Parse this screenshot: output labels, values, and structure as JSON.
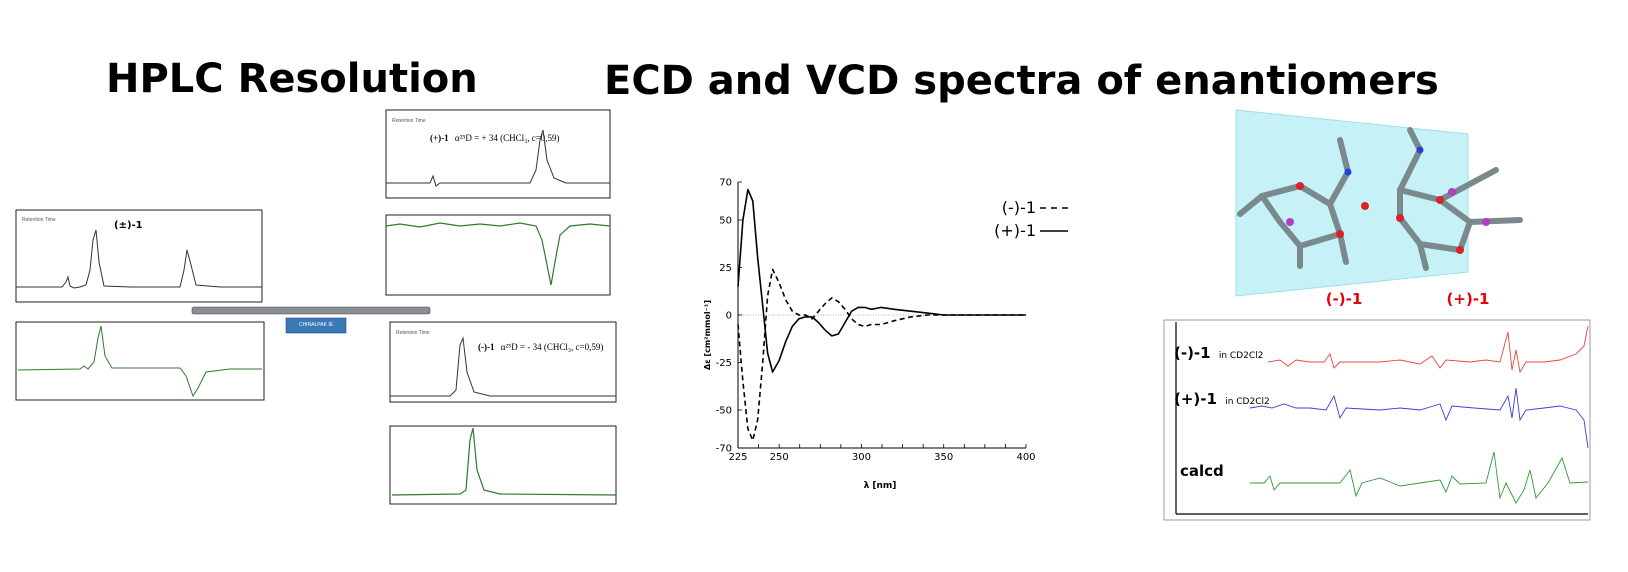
{
  "titles": {
    "hplc": "HPLC Resolution",
    "main": "ECD and VCD spectra of enantiomers"
  },
  "hplc": {
    "racemic_label": "(±)-1",
    "plus_label": "(+)-1",
    "plus_rotation": "α²⁵D = + 34 (CHCl₃, c=0,59)",
    "minus_label": "(-)-1",
    "minus_rotation": "α²⁵D = - 34 (CHCl₃, c=0,59)",
    "retention_label": "Retention Time",
    "column_label": "CHIRALPAK IE"
  },
  "structure": {
    "minus_label": "(-)-1",
    "plus_label": "(+)-1",
    "label_color": "#e8000b"
  },
  "vcd": {
    "rows": [
      {
        "label_big": "(-)-1",
        "label_small": "in CD2Cl2",
        "color": "#e8473f"
      },
      {
        "label_big": "(+)-1",
        "label_small": "in CD2Cl2",
        "color": "#3b3bd8"
      },
      {
        "label_big": "calcd",
        "label_small": "",
        "color": "#2e9a3a"
      }
    ]
  },
  "chart_data": [
    {
      "type": "line",
      "title": "",
      "xlabel": "λ [nm]",
      "ylabel": "Δε [cm²mmol⁻¹]",
      "xlim": [
        225,
        400
      ],
      "ylim": [
        -70,
        70
      ],
      "x_ticks": [
        225,
        250,
        300,
        350,
        400
      ],
      "y_ticks": [
        70,
        50,
        25,
        0,
        -25,
        -50,
        -70
      ],
      "y_tick_labels": [
        "70",
        "50",
        "25",
        "0",
        "-25",
        "-50",
        "-70"
      ],
      "legend_position": "top-right",
      "series": [
        {
          "name": "(-)-1",
          "style": "dashed",
          "x": [
            225,
            228,
            231,
            234,
            237,
            240,
            243,
            246,
            250,
            254,
            258,
            262,
            266,
            270,
            274,
            278,
            282,
            286,
            290,
            294,
            298,
            302,
            306,
            312,
            320,
            330,
            340,
            350,
            360,
            380,
            400
          ],
          "y": [
            -5,
            -35,
            -60,
            -66,
            -55,
            -25,
            10,
            24,
            17,
            8,
            2,
            0,
            0,
            -2,
            2,
            6,
            9,
            7,
            3,
            -2,
            -5,
            -6,
            -5,
            -5,
            -3,
            -1,
            0,
            0,
            0,
            0,
            0
          ]
        },
        {
          "name": "(+)-1",
          "style": "solid",
          "x": [
            225,
            228,
            231,
            234,
            237,
            240,
            243,
            246,
            250,
            254,
            258,
            262,
            266,
            270,
            274,
            278,
            282,
            286,
            290,
            294,
            298,
            302,
            306,
            312,
            320,
            330,
            340,
            350,
            360,
            380,
            400
          ],
          "y": [
            15,
            50,
            66,
            60,
            30,
            5,
            -20,
            -30,
            -24,
            -14,
            -6,
            -2,
            -1,
            -1,
            -4,
            -8,
            -11,
            -10,
            -4,
            2,
            4,
            4,
            3,
            4,
            3,
            2,
            1,
            0,
            0,
            0,
            0
          ]
        }
      ]
    }
  ]
}
